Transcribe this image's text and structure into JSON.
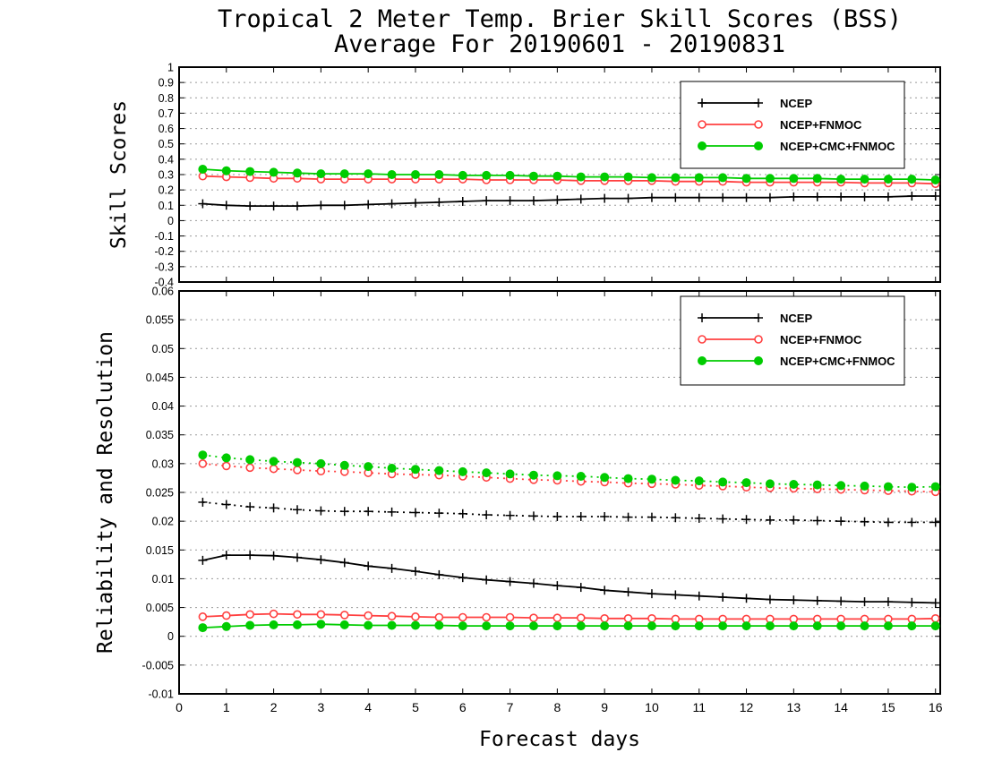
{
  "title_line1": "Tropical 2 Meter Temp. Brier Skill Scores (BSS)",
  "title_line2": "Average For 20190601 - 20190831",
  "xlabel": "Forecast days",
  "chart_data": [
    {
      "type": "line",
      "ylabel": "Skill Scores",
      "xlim": [
        0,
        16.1
      ],
      "ylim": [
        -0.4,
        1
      ],
      "yticks": [
        "-0.4",
        "-0.3",
        "-0.2",
        "-0.1",
        "0",
        "0.1",
        "0.2",
        "0.3",
        "0.4",
        "0.5",
        "0.6",
        "0.7",
        "0.8",
        "0.9",
        "1"
      ],
      "xticks": [
        "0",
        "1",
        "2",
        "3",
        "4",
        "5",
        "6",
        "7",
        "8",
        "9",
        "10",
        "11",
        "12",
        "13",
        "14",
        "15",
        "16"
      ],
      "legend_position": "top-right",
      "grid": true,
      "x": [
        0.5,
        1,
        1.5,
        2,
        2.5,
        3,
        3.5,
        4,
        4.5,
        5,
        5.5,
        6,
        6.5,
        7,
        7.5,
        8,
        8.5,
        9,
        9.5,
        10,
        10.5,
        11,
        11.5,
        12,
        12.5,
        13,
        13.5,
        14,
        14.5,
        15,
        15.5,
        16
      ],
      "series": [
        {
          "name": "NCEP",
          "color": "#000000",
          "marker": "plus",
          "style": "solid",
          "values": [
            0.11,
            0.1,
            0.095,
            0.095,
            0.095,
            0.1,
            0.1,
            0.105,
            0.11,
            0.115,
            0.12,
            0.125,
            0.13,
            0.13,
            0.13,
            0.135,
            0.14,
            0.145,
            0.145,
            0.15,
            0.15,
            0.15,
            0.15,
            0.15,
            0.15,
            0.155,
            0.155,
            0.155,
            0.155,
            0.155,
            0.16,
            0.16
          ]
        },
        {
          "name": "NCEP+FNMOC",
          "color": "#ff4040",
          "marker": "circle-open",
          "style": "solid",
          "values": [
            0.29,
            0.285,
            0.28,
            0.275,
            0.275,
            0.27,
            0.27,
            0.27,
            0.27,
            0.27,
            0.27,
            0.27,
            0.265,
            0.265,
            0.265,
            0.265,
            0.26,
            0.26,
            0.26,
            0.26,
            0.255,
            0.255,
            0.255,
            0.25,
            0.25,
            0.25,
            0.25,
            0.25,
            0.245,
            0.245,
            0.245,
            0.24
          ]
        },
        {
          "name": "NCEP+CMC+FNMOC",
          "color": "#00cc00",
          "marker": "circle-filled",
          "style": "solid",
          "values": [
            0.335,
            0.325,
            0.32,
            0.315,
            0.31,
            0.305,
            0.305,
            0.305,
            0.3,
            0.3,
            0.3,
            0.295,
            0.295,
            0.295,
            0.29,
            0.29,
            0.285,
            0.285,
            0.285,
            0.28,
            0.28,
            0.28,
            0.28,
            0.275,
            0.275,
            0.275,
            0.275,
            0.27,
            0.27,
            0.27,
            0.27,
            0.265
          ]
        }
      ]
    },
    {
      "type": "line",
      "ylabel": "Reliability and Resolution",
      "xlim": [
        0,
        16.1
      ],
      "ylim": [
        -0.01,
        0.06
      ],
      "yticks": [
        "-0.01",
        "-0.005",
        "0",
        "0.005",
        "0.01",
        "0.015",
        "0.02",
        "0.025",
        "0.03",
        "0.035",
        "0.04",
        "0.045",
        "0.05",
        "0.055",
        "0.06"
      ],
      "xticks": [
        "0",
        "1",
        "2",
        "3",
        "4",
        "5",
        "6",
        "7",
        "8",
        "9",
        "10",
        "11",
        "12",
        "13",
        "14",
        "15",
        "16"
      ],
      "legend_position": "top-right",
      "grid": true,
      "x": [
        0.5,
        1,
        1.5,
        2,
        2.5,
        3,
        3.5,
        4,
        4.5,
        5,
        5.5,
        6,
        6.5,
        7,
        7.5,
        8,
        8.5,
        9,
        9.5,
        10,
        10.5,
        11,
        11.5,
        12,
        12.5,
        13,
        13.5,
        14,
        14.5,
        15,
        15.5,
        16
      ],
      "series": [
        {
          "name": "NCEP",
          "color": "#000000",
          "marker": "plus",
          "style": "dotted",
          "role": "reliability",
          "values": [
            0.0233,
            0.0229,
            0.0225,
            0.0223,
            0.022,
            0.0218,
            0.0217,
            0.0217,
            0.0216,
            0.0215,
            0.0214,
            0.0213,
            0.0211,
            0.021,
            0.0209,
            0.0208,
            0.0208,
            0.0208,
            0.0207,
            0.0207,
            0.0206,
            0.0205,
            0.0204,
            0.0203,
            0.0202,
            0.0202,
            0.0201,
            0.02,
            0.0199,
            0.0198,
            0.0198,
            0.0198
          ]
        },
        {
          "name": "NCEP",
          "color": "#000000",
          "marker": "plus",
          "style": "solid",
          "role": "resolution",
          "values": [
            0.0132,
            0.0141,
            0.0141,
            0.014,
            0.0137,
            0.0133,
            0.0128,
            0.0122,
            0.0118,
            0.0113,
            0.0107,
            0.0102,
            0.0098,
            0.0095,
            0.0092,
            0.0088,
            0.0085,
            0.008,
            0.0077,
            0.0074,
            0.0072,
            0.007,
            0.0068,
            0.0066,
            0.0064,
            0.0063,
            0.0062,
            0.0061,
            0.006,
            0.006,
            0.0059,
            0.0058
          ]
        },
        {
          "name": "NCEP+FNMOC",
          "color": "#ff4040",
          "marker": "circle-open",
          "style": "dotted",
          "role": "reliability",
          "values": [
            0.03,
            0.0296,
            0.0293,
            0.0291,
            0.0289,
            0.0287,
            0.0286,
            0.0284,
            0.0282,
            0.0281,
            0.028,
            0.0278,
            0.0276,
            0.0274,
            0.0272,
            0.0271,
            0.0269,
            0.0268,
            0.0266,
            0.0265,
            0.0264,
            0.0262,
            0.0261,
            0.0259,
            0.0258,
            0.0257,
            0.0256,
            0.0255,
            0.0254,
            0.0253,
            0.0252,
            0.0251
          ]
        },
        {
          "name": "NCEP+FNMOC",
          "color": "#ff4040",
          "marker": "circle-open",
          "style": "solid",
          "role": "resolution",
          "values": [
            0.0034,
            0.0036,
            0.0038,
            0.0039,
            0.0038,
            0.0038,
            0.0037,
            0.0036,
            0.0035,
            0.0034,
            0.0033,
            0.0033,
            0.0033,
            0.0033,
            0.0032,
            0.0032,
            0.0032,
            0.0031,
            0.0031,
            0.0031,
            0.003,
            0.003,
            0.003,
            0.003,
            0.003,
            0.003,
            0.003,
            0.003,
            0.003,
            0.003,
            0.003,
            0.0031
          ]
        },
        {
          "name": "NCEP+CMC+FNMOC",
          "color": "#00cc00",
          "marker": "circle-filled",
          "style": "dotted",
          "role": "reliability",
          "values": [
            0.0315,
            0.031,
            0.0307,
            0.0304,
            0.0302,
            0.03,
            0.0297,
            0.0295,
            0.0292,
            0.029,
            0.0288,
            0.0286,
            0.0284,
            0.0282,
            0.028,
            0.0279,
            0.0278,
            0.0276,
            0.0274,
            0.0273,
            0.0271,
            0.027,
            0.0268,
            0.0267,
            0.0265,
            0.0264,
            0.0263,
            0.0262,
            0.0261,
            0.026,
            0.0259,
            0.026
          ]
        },
        {
          "name": "NCEP+CMC+FNMOC",
          "color": "#00cc00",
          "marker": "circle-filled",
          "style": "solid",
          "role": "resolution",
          "values": [
            0.0015,
            0.0017,
            0.0019,
            0.002,
            0.002,
            0.0021,
            0.002,
            0.0019,
            0.0019,
            0.0019,
            0.0019,
            0.0018,
            0.0018,
            0.0018,
            0.0018,
            0.0018,
            0.0018,
            0.0018,
            0.0018,
            0.0018,
            0.0018,
            0.0018,
            0.0018,
            0.0018,
            0.0018,
            0.0018,
            0.0018,
            0.0018,
            0.0018,
            0.0018,
            0.0018,
            0.0018
          ]
        }
      ]
    }
  ]
}
